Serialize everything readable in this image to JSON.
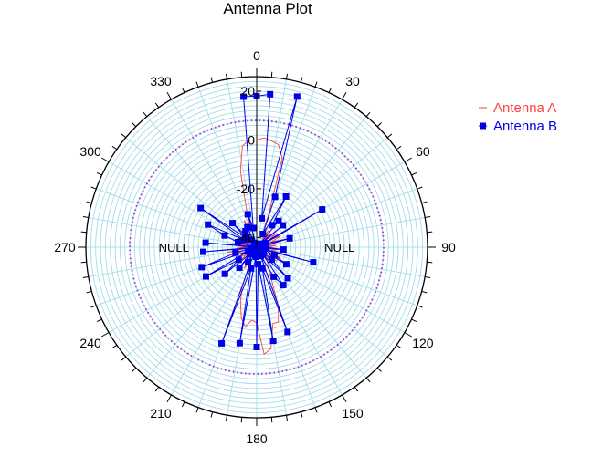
{
  "chart_data": {
    "type": "polar-line",
    "title": "Antenna Plot",
    "angle_ticks": [
      "0",
      "30",
      "60",
      "90",
      "120",
      "150",
      "180",
      "210",
      "240",
      "270",
      "300",
      "330"
    ],
    "radial_ticks": [
      {
        "value": 20,
        "label": "20"
      },
      {
        "value": 0,
        "label": "0"
      },
      {
        "value": -20,
        "label": "-20"
      },
      {
        "value": -40,
        "label": "-40"
      }
    ],
    "r_range": [
      -44,
      26
    ],
    "reference_ring": {
      "value": 8,
      "color": "#9a3fd6",
      "style": "dotted"
    },
    "annotations": [
      {
        "text": "NULL",
        "angle": 270
      },
      {
        "text": "NULL",
        "angle": 90
      }
    ],
    "legend": {
      "position": "top-right"
    },
    "series": [
      {
        "name": "Antenna A",
        "color": "#ff4040",
        "marker": "none",
        "points": [
          [
            0,
            0
          ],
          [
            4,
            1
          ],
          [
            8,
            0
          ],
          [
            12,
            -1
          ],
          [
            16,
            -6
          ],
          [
            20,
            -30
          ],
          [
            24,
            -38
          ],
          [
            28,
            -35
          ],
          [
            32,
            -40
          ],
          [
            36,
            -35
          ],
          [
            40,
            -41
          ],
          [
            45,
            -36
          ],
          [
            50,
            -40
          ],
          [
            55,
            -34
          ],
          [
            60,
            -38
          ],
          [
            65,
            -33
          ],
          [
            70,
            -38
          ],
          [
            75,
            -30
          ],
          [
            80,
            -40
          ],
          [
            85,
            -36
          ],
          [
            90,
            -40
          ],
          [
            95,
            -34
          ],
          [
            100,
            -38
          ],
          [
            105,
            -32
          ],
          [
            110,
            -37
          ],
          [
            115,
            -33
          ],
          [
            120,
            -39
          ],
          [
            125,
            -34
          ],
          [
            130,
            -40
          ],
          [
            135,
            -35
          ],
          [
            140,
            -38
          ],
          [
            145,
            -36
          ],
          [
            150,
            -35
          ],
          [
            155,
            -30
          ],
          [
            160,
            -18
          ],
          [
            164,
            -12
          ],
          [
            168,
            -12
          ],
          [
            172,
            -2
          ],
          [
            176,
            0
          ],
          [
            180,
            -13
          ],
          [
            184,
            -14
          ],
          [
            188,
            -11
          ],
          [
            192,
            -14
          ],
          [
            196,
            -20
          ],
          [
            200,
            -26
          ],
          [
            205,
            -38
          ],
          [
            210,
            -34
          ],
          [
            215,
            -38
          ],
          [
            220,
            -35
          ],
          [
            225,
            -40
          ],
          [
            230,
            -34
          ],
          [
            235,
            -39
          ],
          [
            240,
            -35
          ],
          [
            245,
            -40
          ],
          [
            250,
            -33
          ],
          [
            255,
            -38
          ],
          [
            260,
            -32
          ],
          [
            265,
            -40
          ],
          [
            270,
            -36
          ],
          [
            275,
            -42
          ],
          [
            280,
            -35
          ],
          [
            285,
            -40
          ],
          [
            290,
            -36
          ],
          [
            295,
            -41
          ],
          [
            300,
            -37
          ],
          [
            305,
            -40
          ],
          [
            310,
            -35
          ],
          [
            315,
            -38
          ],
          [
            320,
            -36
          ],
          [
            325,
            -40
          ],
          [
            330,
            -36
          ],
          [
            335,
            -32
          ],
          [
            340,
            -36
          ],
          [
            344,
            -30
          ],
          [
            348,
            -12
          ],
          [
            352,
            -2
          ],
          [
            356,
            0
          ],
          [
            360,
            0
          ]
        ]
      },
      {
        "name": "Antenna B",
        "color": "#0000e6",
        "marker": "square",
        "points": [
          [
            0,
            18
          ],
          [
            5,
            19
          ],
          [
            10,
            -32
          ],
          [
            15,
            20
          ],
          [
            20,
            -22
          ],
          [
            25,
            -38
          ],
          [
            30,
            -20
          ],
          [
            35,
            -33
          ],
          [
            40,
            -30
          ],
          [
            45,
            -42
          ],
          [
            50,
            -30
          ],
          [
            55,
            -43
          ],
          [
            60,
            -13
          ],
          [
            65,
            -40
          ],
          [
            70,
            -40
          ],
          [
            75,
            -30
          ],
          [
            80,
            -41
          ],
          [
            85,
            -44
          ],
          [
            90,
            -40
          ],
          [
            95,
            -33
          ],
          [
            100,
            -43
          ],
          [
            105,
            -20
          ],
          [
            110,
            -41
          ],
          [
            115,
            -36
          ],
          [
            120,
            -30
          ],
          [
            125,
            -42
          ],
          [
            130,
            -36
          ],
          [
            135,
            -26
          ],
          [
            140,
            -40
          ],
          [
            145,
            -25
          ],
          [
            150,
            -30
          ],
          [
            155,
            -40
          ],
          [
            160,
            -7
          ],
          [
            165,
            -35
          ],
          [
            170,
            -5
          ],
          [
            175,
            -37
          ],
          [
            180,
            -3
          ],
          [
            185,
            -40
          ],
          [
            190,
            -4
          ],
          [
            195,
            -35
          ],
          [
            200,
            -2
          ],
          [
            205,
            -42
          ],
          [
            210,
            -37
          ],
          [
            215,
            -41
          ],
          [
            220,
            -33
          ],
          [
            225,
            -40
          ],
          [
            230,
            -27
          ],
          [
            235,
            -35
          ],
          [
            240,
            -20
          ],
          [
            245,
            -40
          ],
          [
            250,
            -20
          ],
          [
            255,
            -35
          ],
          [
            260,
            -42
          ],
          [
            265,
            -22
          ],
          [
            270,
            -43
          ],
          [
            275,
            -23
          ],
          [
            280,
            -43
          ],
          [
            285,
            -36
          ],
          [
            290,
            -30
          ],
          [
            295,
            -22
          ],
          [
            300,
            -38
          ],
          [
            305,
            -16
          ],
          [
            310,
            -38
          ],
          [
            315,
            -30
          ],
          [
            320,
            -40
          ],
          [
            325,
            -36
          ],
          [
            330,
            -42
          ],
          [
            335,
            -35
          ],
          [
            340,
            -44
          ],
          [
            345,
            -30
          ],
          [
            350,
            -36
          ],
          [
            355,
            18
          ],
          [
            360,
            18
          ]
        ]
      }
    ]
  }
}
